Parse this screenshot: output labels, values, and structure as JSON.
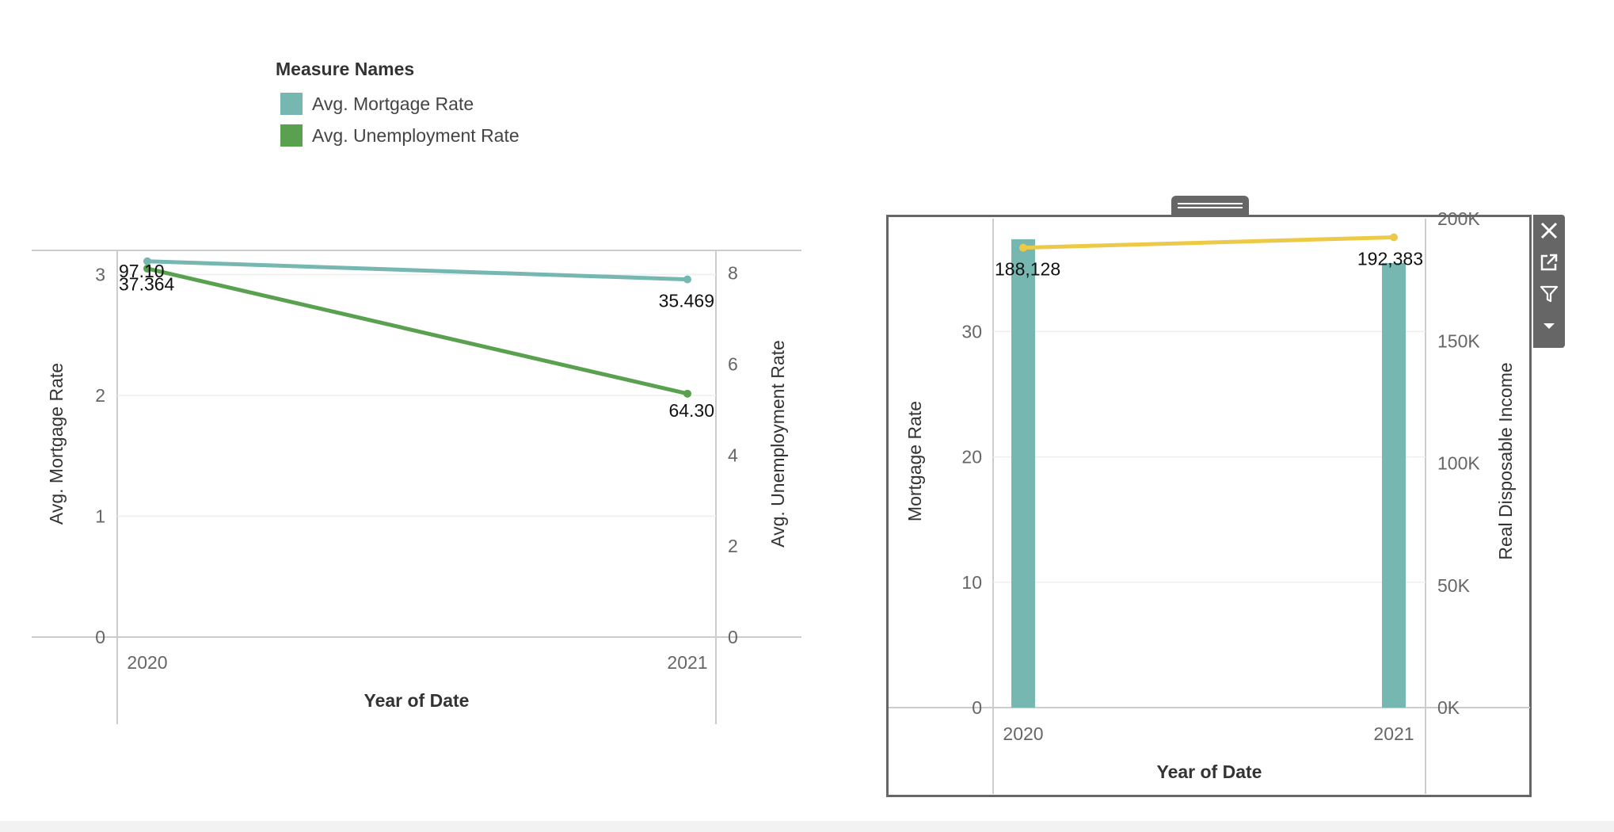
{
  "legend": {
    "title": "Measure Names",
    "items": [
      {
        "label": "Avg. Mortgage Rate",
        "color": "#76b7b2"
      },
      {
        "label": "Avg. Unemployment Rate",
        "color": "#59a14f"
      }
    ]
  },
  "chart_data": [
    {
      "type": "line",
      "x": [
        "2020",
        "2021"
      ],
      "xlabel": "Year of Date",
      "ylabel": "Avg. Mortgage Rate",
      "y2label": "Avg. Unemployment Rate",
      "ylim": [
        0,
        3.2
      ],
      "y2lim": [
        0,
        8.5
      ],
      "yticks": [
        "0",
        "1",
        "2",
        "3"
      ],
      "y2ticks": [
        "0",
        "2",
        "4",
        "6",
        "8"
      ],
      "series": [
        {
          "name": "Avg. Mortgage Rate",
          "axis": "left",
          "color": "#76b7b2",
          "values": [
            3.11,
            2.96
          ],
          "labels": [
            "37.364",
            "35.469"
          ]
        },
        {
          "name": "Avg. Unemployment Rate",
          "axis": "right",
          "color": "#59a14f",
          "values": [
            8.1,
            5.35
          ],
          "labels": [
            "97.10",
            "64.30"
          ]
        }
      ]
    },
    {
      "type": "bar",
      "categories": [
        "2020",
        "2021"
      ],
      "xlabel": "Year of Date",
      "ylabel": "Mortgage Rate",
      "y2label": "Real Disposable Income",
      "ylim": [
        0,
        39
      ],
      "y2lim": [
        0,
        200000
      ],
      "yticks": [
        "0",
        "10",
        "20",
        "30"
      ],
      "y2ticks": [
        "0K",
        "50K",
        "100K",
        "150K",
        "200K"
      ],
      "series": [
        {
          "name": "Mortgage Rate",
          "type": "bar",
          "axis": "left",
          "color": "#76b7b2",
          "values": [
            37.364,
            35.469
          ]
        },
        {
          "name": "Real Disposable Income",
          "type": "line",
          "axis": "right",
          "color": "#edc948",
          "values": [
            188128,
            192383
          ],
          "labels": [
            "188,128",
            "192,383"
          ]
        }
      ]
    }
  ]
}
